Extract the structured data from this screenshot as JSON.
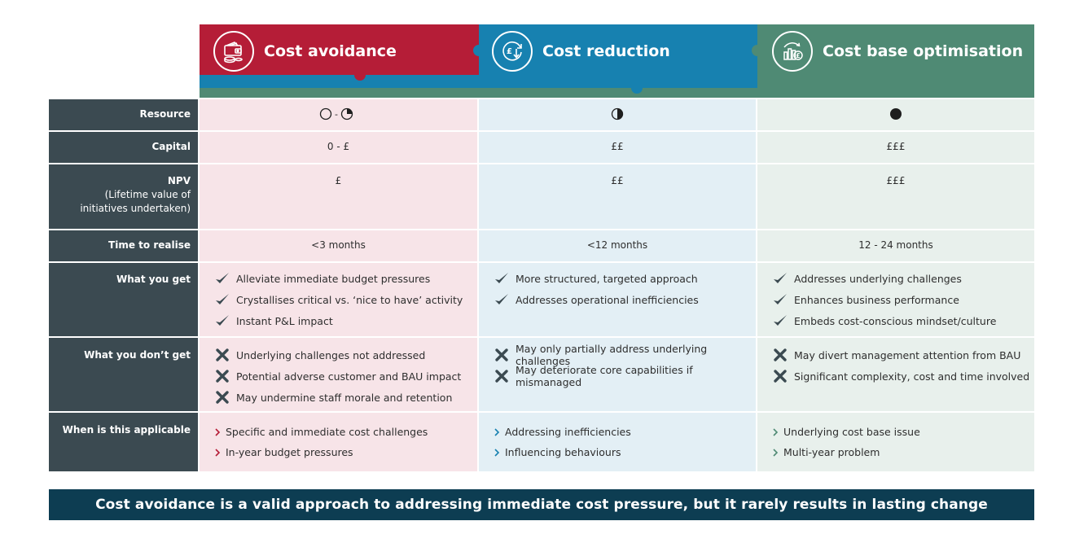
{
  "colors": {
    "avoidance": "#b51d37",
    "reduction": "#1781b0",
    "optimisation": "#4f8a74",
    "label_bg": "#3b4a51",
    "banner_bg": "#0d3d52"
  },
  "columns": [
    {
      "title": "Cost avoidance",
      "icon": "wallet-coins-icon"
    },
    {
      "title": "Cost reduction",
      "icon": "pound-down-arrow-icon"
    },
    {
      "title": "Cost base optimisation",
      "icon": "bar-chart-pound-icon"
    }
  ],
  "rows": {
    "resource": {
      "label": "Resource",
      "levels": [
        "0 - 0.25",
        "0.5",
        "1.0"
      ],
      "separator": "-"
    },
    "capital": {
      "label": "Capital",
      "values": [
        "0 - £",
        "££",
        "£££"
      ]
    },
    "npv": {
      "label": "NPV",
      "sublabel_1": "(Lifetime value of",
      "sublabel_2": "initiatives undertaken)",
      "values": [
        "£",
        "££",
        "£££"
      ]
    },
    "time": {
      "label": "Time to realise",
      "values": [
        "<3 months",
        "<12 months",
        "12 - 24 months"
      ]
    },
    "get": {
      "label": "What you get",
      "items": [
        [
          "Alleviate immediate budget pressures",
          "Crystallises critical vs. ‘nice to have’ activity",
          "Instant P&L impact"
        ],
        [
          "More structured, targeted approach",
          "Addresses operational inefficiencies"
        ],
        [
          "Addresses underlying challenges",
          "Enhances business performance",
          "Embeds cost-conscious mindset/culture"
        ]
      ]
    },
    "dont_get": {
      "label": "What you don’t get",
      "items": [
        [
          "Underlying challenges not addressed",
          "Potential adverse customer and BAU impact",
          "May undermine staff morale and retention"
        ],
        [
          "May only partially address underlying challenges",
          "May deteriorate core capabilities if mismanaged"
        ],
        [
          "May divert management attention from BAU",
          "Significant complexity, cost and time involved"
        ]
      ]
    },
    "applicable": {
      "label": "When is this applicable",
      "items": [
        [
          "Specific and immediate cost challenges",
          "In-year budget pressures"
        ],
        [
          "Addressing inefficiencies",
          "Influencing behaviours"
        ],
        [
          "Underlying cost base issue",
          "Multi-year problem"
        ]
      ]
    }
  },
  "banner": "Cost avoidance is a valid approach to addressing immediate cost pressure, but it rarely results in lasting change"
}
